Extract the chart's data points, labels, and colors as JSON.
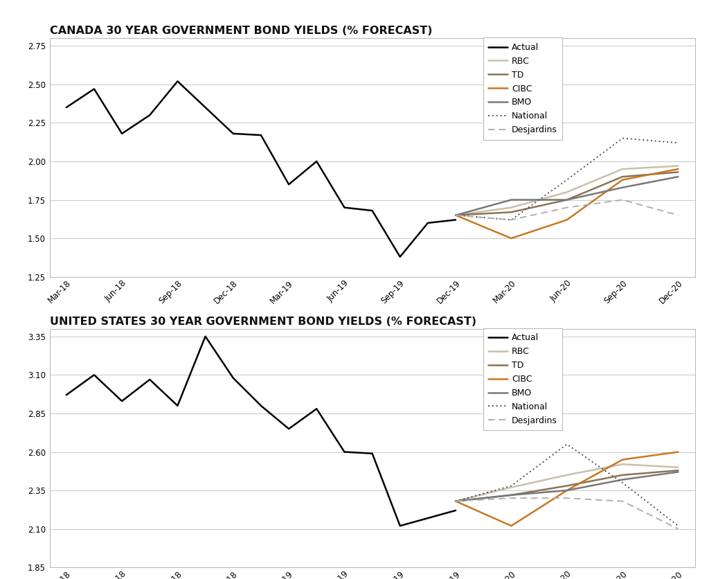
{
  "title1": "CANADA 30 YEAR GOVERNMENT BOND YIELDS (% FORECAST)",
  "title2": "UNITED STATES 30 YEAR GOVERNMENT BOND YIELDS (% FORECAST)",
  "x_labels": [
    "Mar-18",
    "Jun-18",
    "Sep-18",
    "Dec-18",
    "Mar-19",
    "Jun-19",
    "Sep-19",
    "Dec-19",
    "Mar-20",
    "Jun-20",
    "Sep-20",
    "Dec-20"
  ],
  "canada": {
    "actual_x": [
      0,
      0.5,
      1,
      1.5,
      2,
      2.5,
      3,
      3.5,
      4,
      4.5,
      5,
      5.5,
      6,
      6.5,
      7
    ],
    "actual_y": [
      2.35,
      2.47,
      2.18,
      2.3,
      2.52,
      2.35,
      2.18,
      2.17,
      1.85,
      2.0,
      1.7,
      1.68,
      1.38,
      1.6,
      1.62
    ],
    "RBC_x": [
      7,
      8,
      9,
      10,
      11
    ],
    "RBC_y": [
      1.65,
      1.7,
      1.8,
      1.95,
      1.97
    ],
    "TD_x": [
      7,
      8,
      9,
      10,
      11
    ],
    "TD_y": [
      1.65,
      1.67,
      1.75,
      1.9,
      1.93
    ],
    "CIBC_x": [
      7,
      8,
      9,
      10,
      11
    ],
    "CIBC_y": [
      1.65,
      1.5,
      1.62,
      1.88,
      1.95
    ],
    "BMO_x": [
      7,
      8,
      9,
      10,
      11
    ],
    "BMO_y": [
      1.65,
      1.75,
      1.75,
      1.83,
      1.9
    ],
    "National_x": [
      7,
      8,
      9,
      10,
      11
    ],
    "National_y": [
      1.65,
      1.62,
      1.88,
      2.15,
      2.12
    ],
    "Desjardins_x": [
      7,
      8,
      9,
      10,
      11
    ],
    "Desjardins_y": [
      1.65,
      1.62,
      1.7,
      1.75,
      1.65
    ],
    "ylim": [
      1.25,
      2.8
    ],
    "yticks": [
      1.25,
      1.5,
      1.75,
      2.0,
      2.25,
      2.5,
      2.75
    ]
  },
  "us": {
    "actual_x": [
      0,
      0.5,
      1,
      1.5,
      2,
      2.5,
      3,
      3.5,
      4,
      4.5,
      5,
      5.5,
      6,
      6.5,
      7
    ],
    "actual_y": [
      2.97,
      3.1,
      2.93,
      3.07,
      2.9,
      3.35,
      3.08,
      2.9,
      2.75,
      2.88,
      2.6,
      2.59,
      2.12,
      2.17,
      2.22
    ],
    "RBC_x": [
      7,
      8,
      9,
      10,
      11
    ],
    "RBC_y": [
      2.28,
      2.37,
      2.45,
      2.52,
      2.5
    ],
    "TD_x": [
      7,
      8,
      9,
      10,
      11
    ],
    "TD_y": [
      2.28,
      2.32,
      2.38,
      2.45,
      2.48
    ],
    "CIBC_x": [
      7,
      8,
      9,
      10,
      11
    ],
    "CIBC_y": [
      2.28,
      2.12,
      2.35,
      2.55,
      2.6
    ],
    "BMO_x": [
      7,
      8,
      9,
      10,
      11
    ],
    "BMO_y": [
      2.28,
      2.32,
      2.35,
      2.42,
      2.47
    ],
    "National_x": [
      7,
      8,
      9,
      10,
      11
    ],
    "National_y": [
      2.28,
      2.38,
      2.65,
      2.4,
      2.12
    ],
    "Desjardins_x": [
      7,
      8,
      9,
      10,
      11
    ],
    "Desjardins_y": [
      2.28,
      2.3,
      2.3,
      2.28,
      2.1
    ],
    "ylim": [
      1.85,
      3.4
    ],
    "yticks": [
      1.85,
      2.1,
      2.35,
      2.6,
      2.85,
      3.1,
      3.35
    ]
  },
  "colors": {
    "actual": "#000000",
    "RBC": "#c8c0aa",
    "TD": "#8b7355",
    "CIBC": "#c87820",
    "BMO": "#787878",
    "National": "#505050",
    "Desjardins": "#b0b0b0"
  },
  "background": "#ffffff",
  "plot_bg": "#ffffff"
}
